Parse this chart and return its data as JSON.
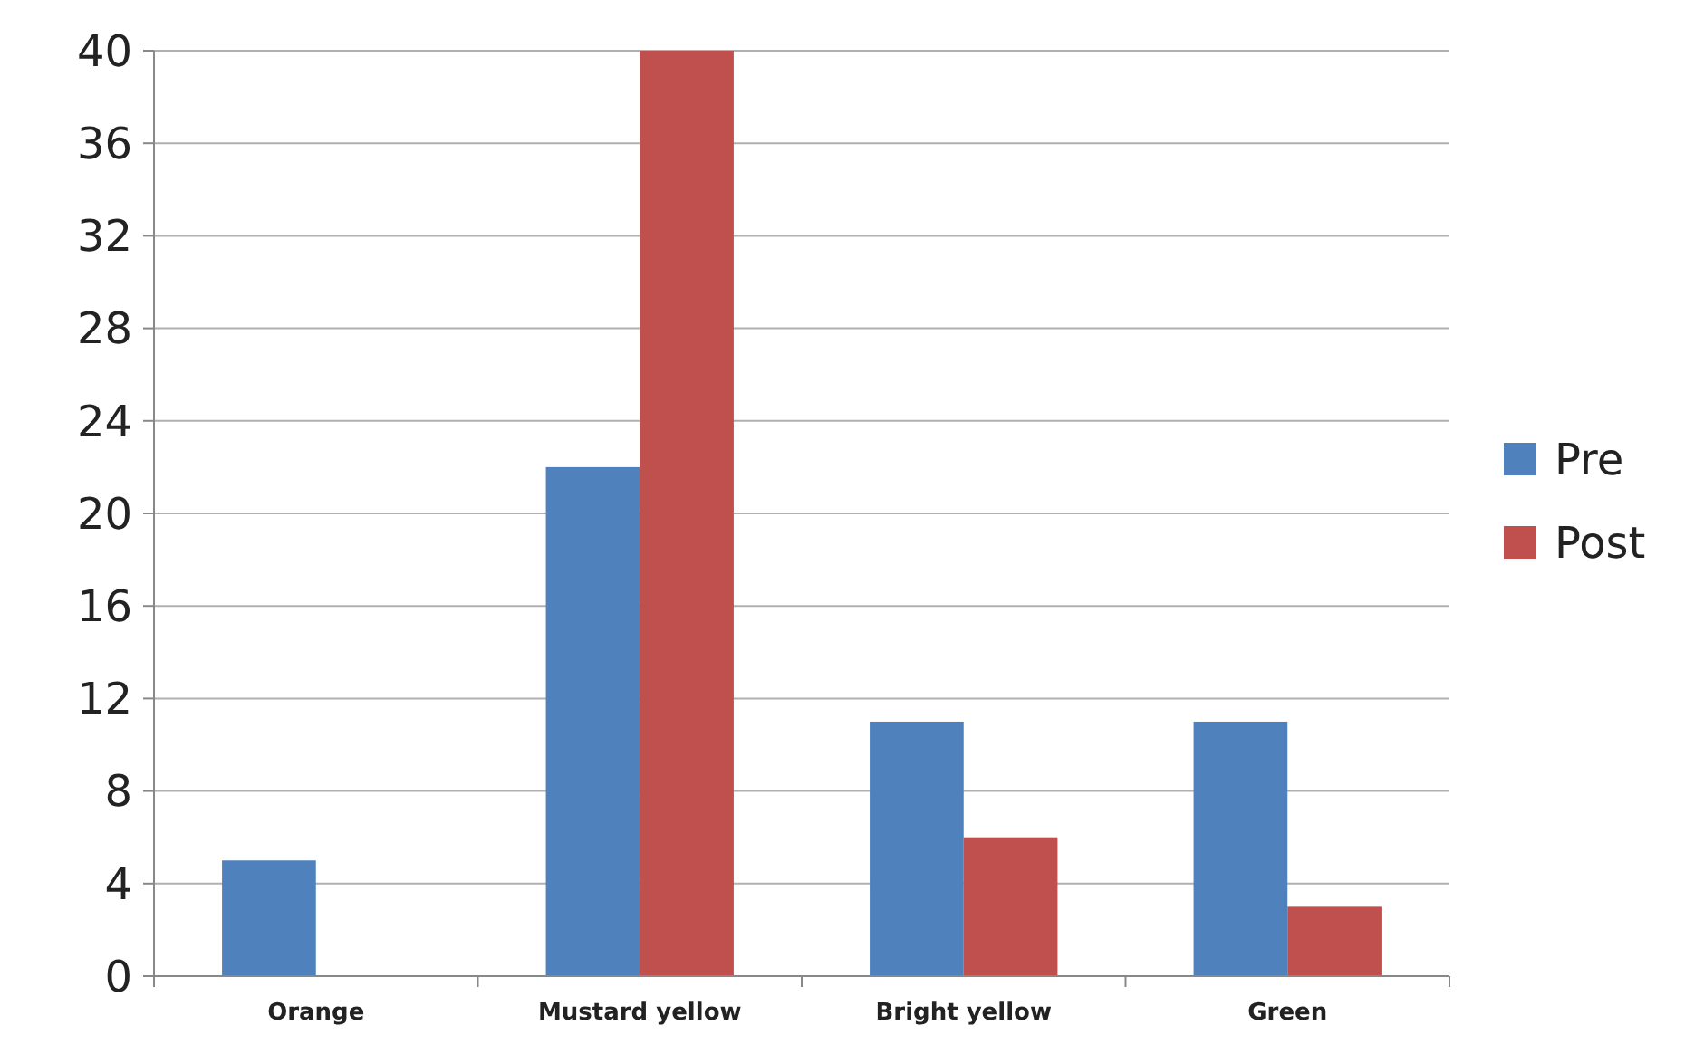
{
  "chart_data": {
    "type": "bar",
    "categories": [
      "Orange",
      "Mustard yellow",
      "Bright yellow",
      "Green"
    ],
    "series": [
      {
        "name": "Pre",
        "color": "#4f81bd",
        "values": [
          5,
          22,
          11,
          11
        ]
      },
      {
        "name": "Post",
        "color": "#c0504d",
        "values": [
          0,
          40,
          6,
          3
        ]
      }
    ],
    "ylim": [
      0,
      40
    ],
    "yticks": [
      0,
      4,
      8,
      12,
      16,
      20,
      24,
      28,
      32,
      36,
      40
    ],
    "grid": "y",
    "legend": "right"
  }
}
